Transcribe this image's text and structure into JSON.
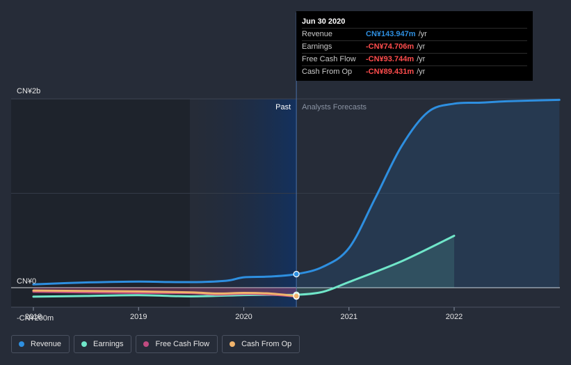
{
  "chart_data": {
    "type": "line",
    "x_unit": "year",
    "x_ticks": [
      2018,
      2019,
      2020,
      2021,
      2022
    ],
    "ylim": [
      -200,
      2000
    ],
    "y_tick_labels": [
      {
        "value": 2000,
        "label": "CN¥2b"
      },
      {
        "value": 0,
        "label": "CN¥0"
      },
      {
        "value": -200,
        "label": "-CN¥200m"
      }
    ],
    "past_label": "Past",
    "forecast_label": "Analysts Forecasts",
    "divider_x": 2020.5,
    "series": [
      {
        "name": "Revenue",
        "color": "#2e8fe0",
        "fill": true,
        "points": [
          [
            2018.0,
            35
          ],
          [
            2018.5,
            55
          ],
          [
            2019.0,
            65
          ],
          [
            2019.3,
            60
          ],
          [
            2019.6,
            60
          ],
          [
            2019.85,
            75
          ],
          [
            2020.0,
            110
          ],
          [
            2020.25,
            118
          ],
          [
            2020.5,
            144
          ],
          [
            2020.75,
            220
          ],
          [
            2021.0,
            420
          ],
          [
            2021.25,
            950
          ],
          [
            2021.5,
            1500
          ],
          [
            2021.75,
            1860
          ],
          [
            2022.0,
            1950
          ],
          [
            2022.25,
            1960
          ],
          [
            2022.5,
            1975
          ],
          [
            2023.0,
            1990
          ]
        ]
      },
      {
        "name": "Earnings",
        "color": "#70e6c9",
        "fill": true,
        "points": [
          [
            2018.0,
            -95
          ],
          [
            2018.5,
            -88
          ],
          [
            2019.0,
            -80
          ],
          [
            2019.5,
            -92
          ],
          [
            2020.0,
            -78
          ],
          [
            2020.25,
            -75
          ],
          [
            2020.5,
            -75
          ],
          [
            2020.75,
            -45
          ],
          [
            2021.0,
            60
          ],
          [
            2021.5,
            280
          ],
          [
            2022.0,
            550
          ]
        ]
      },
      {
        "name": "Free Cash Flow",
        "color": "#c04b80",
        "fill": false,
        "points": [
          [
            2018.0,
            -42
          ],
          [
            2018.5,
            -50
          ],
          [
            2019.0,
            -55
          ],
          [
            2019.5,
            -58
          ],
          [
            2019.75,
            -72
          ],
          [
            2020.0,
            -65
          ],
          [
            2020.25,
            -72
          ],
          [
            2020.5,
            -94
          ]
        ]
      },
      {
        "name": "Cash From Op",
        "color": "#f0b46c",
        "fill": false,
        "points": [
          [
            2018.0,
            -30
          ],
          [
            2018.5,
            -35
          ],
          [
            2019.0,
            -40
          ],
          [
            2019.5,
            -50
          ],
          [
            2019.75,
            -62
          ],
          [
            2020.0,
            -55
          ],
          [
            2020.25,
            -62
          ],
          [
            2020.5,
            -89
          ]
        ]
      }
    ]
  },
  "tooltip": {
    "date": "Jun 30 2020",
    "rows": [
      {
        "name": "Revenue",
        "value": "CN¥143.947m",
        "unit": "/yr",
        "color": "#2e8fe0"
      },
      {
        "name": "Earnings",
        "value": "-CN¥74.706m",
        "unit": "/yr",
        "color": "#ff4d4d"
      },
      {
        "name": "Free Cash Flow",
        "value": "-CN¥93.744m",
        "unit": "/yr",
        "color": "#ff4d4d"
      },
      {
        "name": "Cash From Op",
        "value": "-CN¥89.431m",
        "unit": "/yr",
        "color": "#ff4d4d"
      }
    ]
  },
  "legend": {
    "items": [
      {
        "label": "Revenue",
        "color": "#2e8fe0"
      },
      {
        "label": "Earnings",
        "color": "#70e6c9"
      },
      {
        "label": "Free Cash Flow",
        "color": "#c04b80"
      },
      {
        "label": "Cash From Op",
        "color": "#f0b46c"
      }
    ]
  }
}
